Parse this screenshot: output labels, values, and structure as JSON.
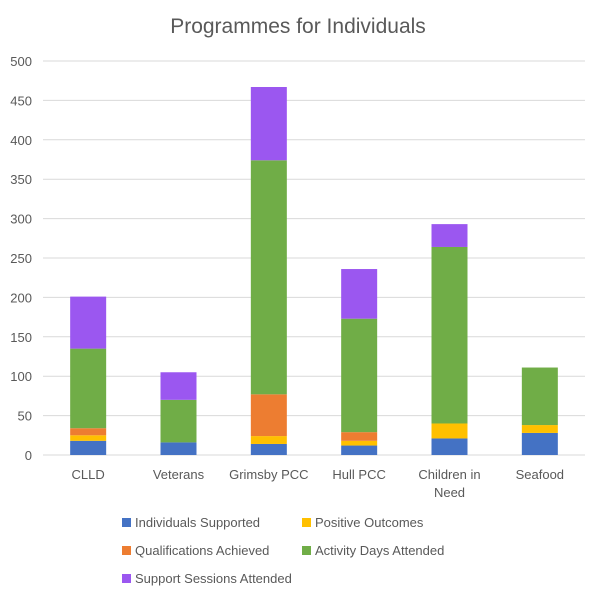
{
  "chart_data": {
    "type": "bar",
    "stacked": true,
    "title": "Programmes for Individuals",
    "xlabel": "",
    "ylabel": "",
    "ylim": [
      0,
      500
    ],
    "yticks": [
      0,
      50,
      100,
      150,
      200,
      250,
      300,
      350,
      400,
      450,
      500
    ],
    "grid": true,
    "legend_position": "bottom",
    "categories": [
      [
        "CLLD"
      ],
      [
        "Veterans"
      ],
      [
        "Grimsby PCC"
      ],
      [
        "Hull PCC"
      ],
      [
        "Children in",
        "Need"
      ],
      [
        "Seafood"
      ]
    ],
    "series": [
      {
        "name": "Individuals Supported",
        "color": "#4472C4",
        "values": [
          18,
          16,
          14,
          12,
          21,
          28
        ]
      },
      {
        "name": "Positive Outcomes",
        "color": "#FFC000",
        "values": [
          7,
          0,
          10,
          6,
          19,
          10
        ]
      },
      {
        "name": "Qualifications Achieved",
        "color": "#ED7D31",
        "values": [
          9,
          0,
          53,
          11,
          0,
          0
        ]
      },
      {
        "name": "Activity Days Attended",
        "color": "#70AD47",
        "values": [
          101,
          54,
          297,
          144,
          224,
          73
        ]
      },
      {
        "name": "Support Sessions Attended",
        "color": "#9B57F0",
        "values": [
          66,
          35,
          93,
          63,
          29,
          0
        ]
      }
    ]
  }
}
